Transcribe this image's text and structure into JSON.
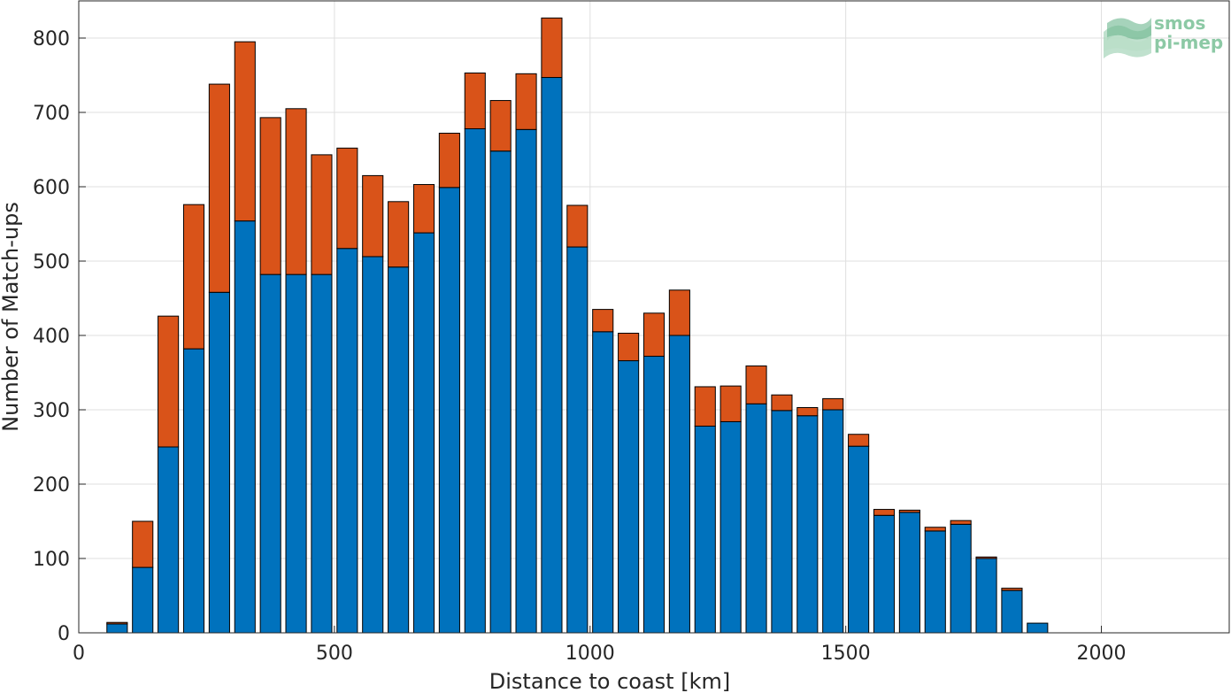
{
  "logo": {
    "line1": "smos",
    "line2": "pi-mep"
  },
  "chart_data": {
    "type": "bar",
    "stacked": true,
    "xlabel": "Distance to coast [km]",
    "ylabel": "Number of Match-ups",
    "xlim": [
      0,
      2250
    ],
    "ylim": [
      0,
      850
    ],
    "xticks": [
      0,
      500,
      1000,
      1500,
      2000
    ],
    "yticks": [
      0,
      100,
      200,
      300,
      400,
      500,
      600,
      700,
      800
    ],
    "grid": true,
    "bar_width": 40,
    "colors": {
      "lower": "#0072bd",
      "upper": "#d95319"
    },
    "x": [
      75,
      125,
      175,
      225,
      275,
      325,
      375,
      425,
      475,
      525,
      575,
      625,
      675,
      725,
      775,
      825,
      875,
      925,
      975,
      1025,
      1075,
      1125,
      1175,
      1225,
      1275,
      1325,
      1375,
      1425,
      1475,
      1525,
      1575,
      1625,
      1675,
      1725,
      1775,
      1825,
      1875
    ],
    "series": [
      {
        "values": [
          12,
          88,
          250,
          382,
          458,
          554,
          482,
          482,
          482,
          517,
          506,
          492,
          538,
          599,
          678,
          648,
          677,
          747,
          519,
          405,
          366,
          372,
          400,
          278,
          284,
          308,
          299,
          292,
          300,
          251,
          158,
          162,
          137,
          146,
          100,
          57,
          13
        ]
      },
      {
        "values": [
          2,
          62,
          176,
          194,
          280,
          241,
          211,
          223,
          161,
          135,
          109,
          88,
          65,
          73,
          75,
          68,
          75,
          80,
          56,
          30,
          37,
          58,
          61,
          53,
          48,
          51,
          21,
          11,
          15,
          16,
          8,
          3,
          5,
          5,
          2,
          3,
          0
        ]
      }
    ]
  }
}
